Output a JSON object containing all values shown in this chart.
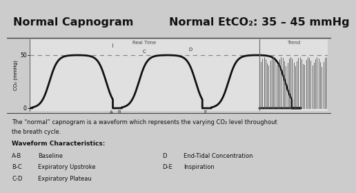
{
  "bg_color": "#cccccc",
  "title_left": "Normal Capnogram",
  "title_right": "Normal EtCO₂: 35 – 45 mmHg",
  "title_fontsize": 11.5,
  "waveform_area_bg": "#e0e0e0",
  "waveform_line_color": "#111111",
  "dashed_line_color": "#888888",
  "ylabel": "CO₂ (mmHg)",
  "ytick_labels": [
    "0",
    "50"
  ],
  "label_realtime": "Real Time",
  "label_trend": "Trend",
  "divider_line_color": "#444444",
  "description_line1": "The “normal” capnogram is a waveform which represents the varying CO₂ level throughout",
  "description_line2": "the breath cycle.",
  "waveform_chars_title": "Waveform Characteristics:",
  "char_col1": [
    [
      "A-B",
      "Baseline"
    ],
    [
      "B-C",
      "Expiratory Upstroke"
    ],
    [
      "C-D",
      "Expiratory Plateau"
    ]
  ],
  "char_col2": [
    [
      "D",
      "End-Tidal Concentration"
    ],
    [
      "D-E",
      "Inspiration"
    ]
  ],
  "text_fontsize": 6.5,
  "label_fontsize": 5.5,
  "title_bg": "#c8c8c8",
  "trend_line_color": "#555555"
}
